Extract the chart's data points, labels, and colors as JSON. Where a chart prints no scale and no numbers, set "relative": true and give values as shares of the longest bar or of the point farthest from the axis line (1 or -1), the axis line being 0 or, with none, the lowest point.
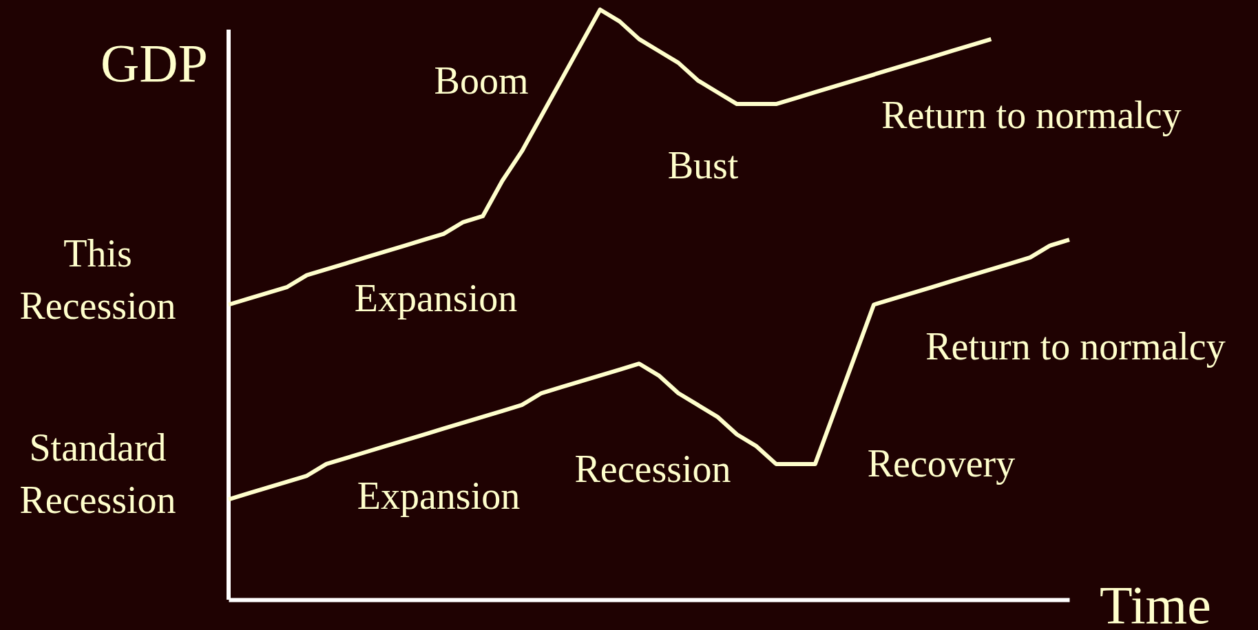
{
  "chart_data": {
    "type": "line",
    "relative": true,
    "xlabel": "Time",
    "ylabel": "GDP",
    "tick_labels": false,
    "line_style": "solid",
    "categories": [
      null,
      null,
      null,
      null,
      null,
      null,
      null,
      null,
      null,
      null,
      null,
      null,
      null,
      null,
      null,
      null,
      null,
      null,
      null,
      null,
      null,
      null,
      null,
      null,
      null,
      null,
      null,
      null,
      null,
      null,
      null,
      null,
      null,
      null,
      null,
      null,
      null,
      null,
      null,
      null,
      null,
      null,
      null,
      null
    ],
    "series": [
      {
        "name": "This Recession",
        "color": "#ffffcc",
        "values": [
          0.5,
          0.51,
          0.52,
          0.53,
          0.55,
          0.56,
          0.57,
          0.58,
          0.59,
          0.6,
          0.61,
          0.62,
          0.64,
          0.65,
          0.71,
          0.76,
          0.82,
          0.88,
          0.94,
          1,
          0.98,
          0.95,
          0.93,
          0.91,
          0.88,
          0.86,
          0.84,
          0.84,
          0.84,
          0.85,
          0.86,
          0.87,
          0.88,
          0.89,
          0.9,
          0.91,
          0.92,
          0.93,
          0.94,
          0.95,
          null,
          null,
          null,
          null
        ]
      },
      {
        "name": "Standard Recession",
        "color": "#ffffcc",
        "values": [
          0.17,
          0.18,
          0.19,
          0.2,
          0.21,
          0.23,
          0.24,
          0.25,
          0.26,
          0.27,
          0.28,
          0.29,
          0.3,
          0.31,
          0.32,
          0.33,
          0.35,
          0.36,
          0.37,
          0.38,
          0.39,
          0.4,
          0.38,
          0.35,
          0.33,
          0.31,
          0.28,
          0.26,
          0.23,
          0.23,
          0.23,
          0.32,
          0.41,
          0.5,
          0.51,
          0.52,
          0.53,
          0.54,
          0.55,
          0.56,
          0.57,
          0.58,
          0.6,
          0.61
        ]
      }
    ],
    "annotations": [
      "Boom",
      "Bust",
      "Return to normalcy",
      "Expansion",
      "Return to normalcy",
      "Recession",
      "Recovery",
      "Expansion"
    ]
  }
}
